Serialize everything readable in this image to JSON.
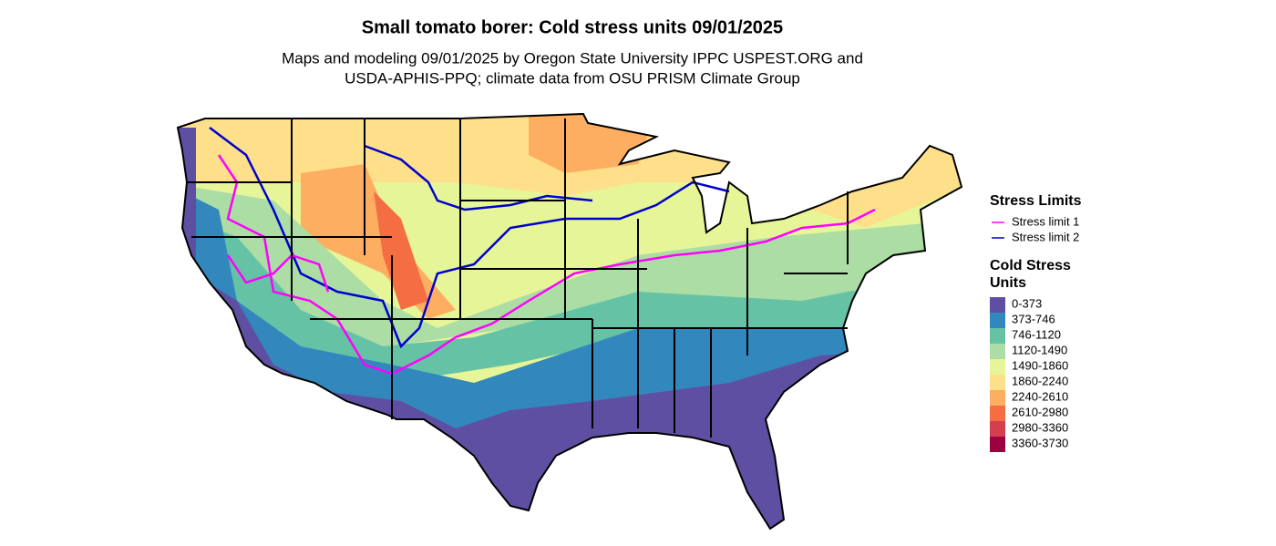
{
  "title": "Small tomato borer: Cold stress units 09/01/2025",
  "subtitle_lines": [
    "Maps and modeling 09/01/2025 by Oregon State University IPPC USPEST.ORG and",
    "USDA-APHIS-PPQ; climate data from OSU PRISM Climate Group"
  ],
  "legend": {
    "limits": {
      "title": "Stress Limits",
      "items": [
        {
          "label": "Stress limit 1",
          "color": "#ff00ff"
        },
        {
          "label": "Stress limit 2",
          "color": "#0000cc"
        }
      ]
    },
    "units": {
      "title_lines": [
        "Cold Stress",
        "Units"
      ],
      "items": [
        {
          "label": "0-373",
          "color": "#5e4fa2"
        },
        {
          "label": "373-746",
          "color": "#3288bd"
        },
        {
          "label": "746-1120",
          "color": "#66c2a5"
        },
        {
          "label": "1120-1490",
          "color": "#abdda4"
        },
        {
          "label": "1490-1860",
          "color": "#e6f598"
        },
        {
          "label": "1860-2240",
          "color": "#fee08b"
        },
        {
          "label": "2240-2610",
          "color": "#fdae61"
        },
        {
          "label": "2610-2980",
          "color": "#f46d43"
        },
        {
          "label": "2980-3360",
          "color": "#d53e4f"
        },
        {
          "label": "3360-3730",
          "color": "#9e0142"
        }
      ]
    }
  }
}
